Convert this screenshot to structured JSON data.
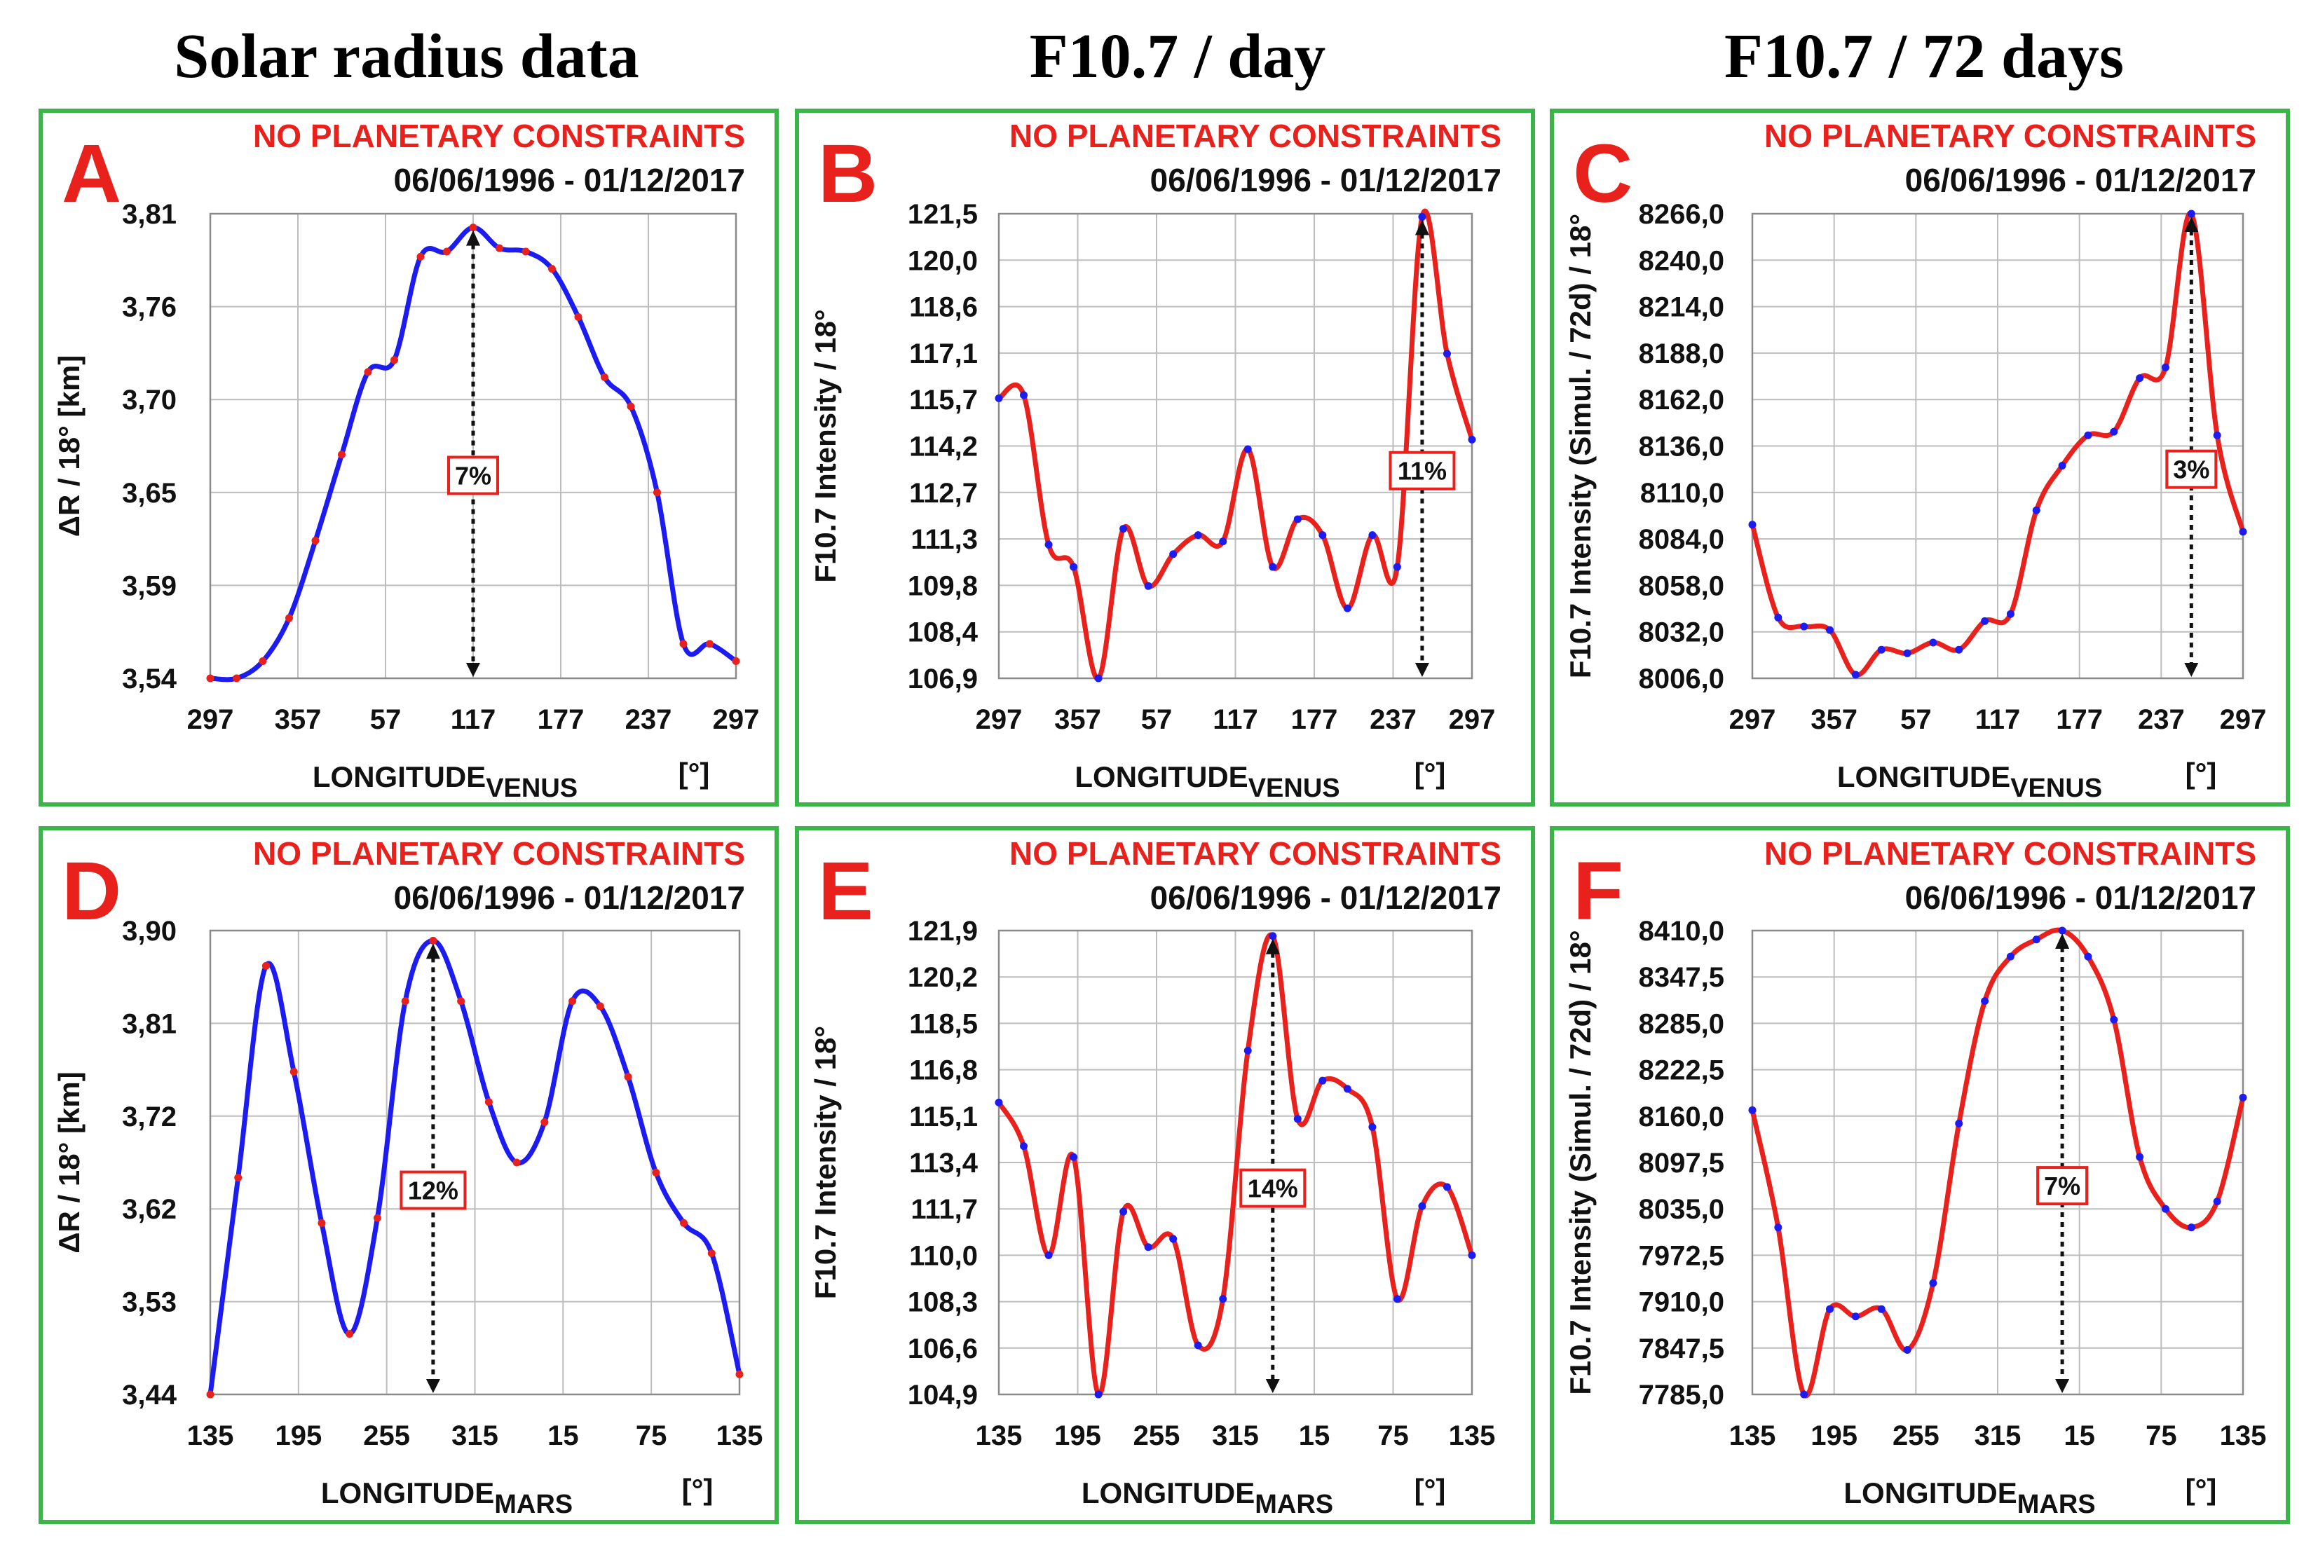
{
  "colors": {
    "venus_series": "#1c1cf0",
    "mars_series_radius": "#1c1cf0",
    "f107_series": "#e8211c",
    "markers_on_blue": "#e8211c",
    "markers_on_red": "#1c1cf0",
    "frame": "#3bb54a",
    "accent": "#e8211c"
  },
  "column_titles": [
    "Solar radius data",
    "F10.7 / day",
    "F10.7 / 72 days"
  ],
  "chart_data": [
    {
      "id": "A",
      "type": "line",
      "constraint": "NO PLANETARY CONSTRAINTS",
      "date_range": "06/06/1996 - 01/12/2017",
      "ylabel": "ΔR / 18°  [km]",
      "xlabel_main": "LONGITUDE",
      "xlabel_sub": "VENUS",
      "xunit": "[°]",
      "ylim": [
        3.54,
        3.81
      ],
      "yticks": [
        "3,81",
        "3,76",
        "3,70",
        "3,65",
        "3,59",
        "3,54"
      ],
      "xticks": [
        "297",
        "357",
        "57",
        "117",
        "177",
        "237",
        "297"
      ],
      "values": [
        3.54,
        3.54,
        3.55,
        3.575,
        3.62,
        3.67,
        3.718,
        3.725,
        3.785,
        3.788,
        3.802,
        3.79,
        3.788,
        3.778,
        3.75,
        3.715,
        3.698,
        3.648,
        3.56,
        3.56,
        3.55
      ],
      "percent": "7%",
      "peak_index": 10
    },
    {
      "id": "B",
      "type": "line",
      "constraint": "NO PLANETARY CONSTRAINTS",
      "date_range": "06/06/1996 - 01/12/2017",
      "ylabel": "F10.7 Intensity  / 18°",
      "xlabel_main": "LONGITUDE",
      "xlabel_sub": "VENUS",
      "xunit": "[°]",
      "ylim": [
        106.9,
        121.5
      ],
      "yticks": [
        "121,5",
        "120,0",
        "118,6",
        "117,1",
        "115,7",
        "114,2",
        "112,7",
        "111,3",
        "109,8",
        "108,4",
        "106,9"
      ],
      "xticks": [
        "297",
        "357",
        "57",
        "117",
        "177",
        "237",
        "297"
      ],
      "values": [
        115.7,
        115.8,
        111.1,
        110.4,
        106.9,
        111.6,
        109.8,
        110.8,
        111.4,
        111.2,
        114.1,
        110.4,
        111.9,
        111.4,
        109.1,
        111.4,
        110.4,
        121.4,
        117.1,
        114.4
      ],
      "percent": "11%",
      "peak_index": 17
    },
    {
      "id": "C",
      "type": "line",
      "constraint": "NO PLANETARY CONSTRAINTS",
      "date_range": "06/06/1996 - 01/12/2017",
      "ylabel": "F10.7 Intensity  (Simul. / 72d) / 18°",
      "xlabel_main": "LONGITUDE",
      "xlabel_sub": "VENUS",
      "xunit": "[°]",
      "ylim": [
        8006.0,
        8266.0
      ],
      "yticks": [
        "8266,0",
        "8240,0",
        "8214,0",
        "8188,0",
        "8162,0",
        "8136,0",
        "8110,0",
        "8084,0",
        "8058,0",
        "8032,0",
        "8006,0"
      ],
      "xticks": [
        "297",
        "357",
        "57",
        "117",
        "177",
        "237",
        "297"
      ],
      "values": [
        8092,
        8040,
        8035,
        8033,
        8008,
        8022,
        8020,
        8026,
        8022,
        8038,
        8042,
        8100,
        8125,
        8142,
        8144,
        8174,
        8180,
        8266,
        8142,
        8088
      ],
      "percent": "3%",
      "peak_index": 17
    },
    {
      "id": "D",
      "type": "line",
      "constraint": "NO PLANETARY CONSTRAINTS",
      "date_range": "06/06/1996 - 01/12/2017",
      "ylabel": "ΔR / 18°  [km]",
      "xlabel_main": "LONGITUDE",
      "xlabel_sub": "MARS",
      "xunit": "[°]",
      "ylim": [
        3.44,
        3.9
      ],
      "yticks": [
        "3,90",
        "3,81",
        "3,72",
        "3,62",
        "3,53",
        "3,44"
      ],
      "xticks": [
        "135",
        "195",
        "255",
        "315",
        "15",
        "75",
        "135"
      ],
      "values": [
        3.44,
        3.655,
        3.865,
        3.76,
        3.61,
        3.5,
        3.615,
        3.83,
        3.89,
        3.83,
        3.73,
        3.67,
        3.71,
        3.83,
        3.825,
        3.755,
        3.66,
        3.61,
        3.58,
        3.46
      ],
      "percent": "12%",
      "peak_index": 8
    },
    {
      "id": "E",
      "type": "line",
      "constraint": "NO PLANETARY CONSTRAINTS",
      "date_range": "06/06/1996 - 01/12/2017",
      "ylabel": "F10.7 Intensity  / 18°",
      "xlabel_main": "LONGITUDE",
      "xlabel_sub": "MARS",
      "xunit": "[°]",
      "ylim": [
        104.9,
        121.9
      ],
      "yticks": [
        "121,9",
        "120,2",
        "118,5",
        "116,8",
        "115,1",
        "113,4",
        "111,7",
        "110,0",
        "108,3",
        "106,6",
        "104,9"
      ],
      "xticks": [
        "135",
        "195",
        "255",
        "315",
        "15",
        "75",
        "135"
      ],
      "values": [
        115.6,
        114.0,
        110.0,
        113.6,
        104.9,
        111.6,
        110.3,
        110.6,
        106.7,
        108.4,
        117.5,
        121.7,
        115.0,
        116.4,
        116.1,
        114.7,
        108.4,
        111.8,
        112.5,
        110.0
      ],
      "percent": "14%",
      "peak_index": 11
    },
    {
      "id": "F",
      "type": "line",
      "constraint": "NO PLANETARY CONSTRAINTS",
      "date_range": "06/06/1996 - 01/12/2017",
      "ylabel": "F10.7 Intensity  (Simul. / 72d) / 18°",
      "xlabel_main": "LONGITUDE",
      "xlabel_sub": "MARS",
      "xunit": "[°]",
      "ylim": [
        7785.0,
        8410.0
      ],
      "yticks": [
        "8410,0",
        "8347,5",
        "8285,0",
        "8222,5",
        "8160,0",
        "8097,5",
        "8035,0",
        "7972,5",
        "7910,0",
        "7847,5",
        "7785,0"
      ],
      "xticks": [
        "135",
        "195",
        "255",
        "315",
        "15",
        "75",
        "135"
      ],
      "values": [
        8168,
        8010,
        7785,
        7900,
        7890,
        7900,
        7845,
        7935,
        8150,
        8315,
        8375,
        8398,
        8410,
        8375,
        8290,
        8105,
        8035,
        8010,
        8045,
        8185
      ],
      "percent": "7%",
      "peak_index": 12
    }
  ]
}
